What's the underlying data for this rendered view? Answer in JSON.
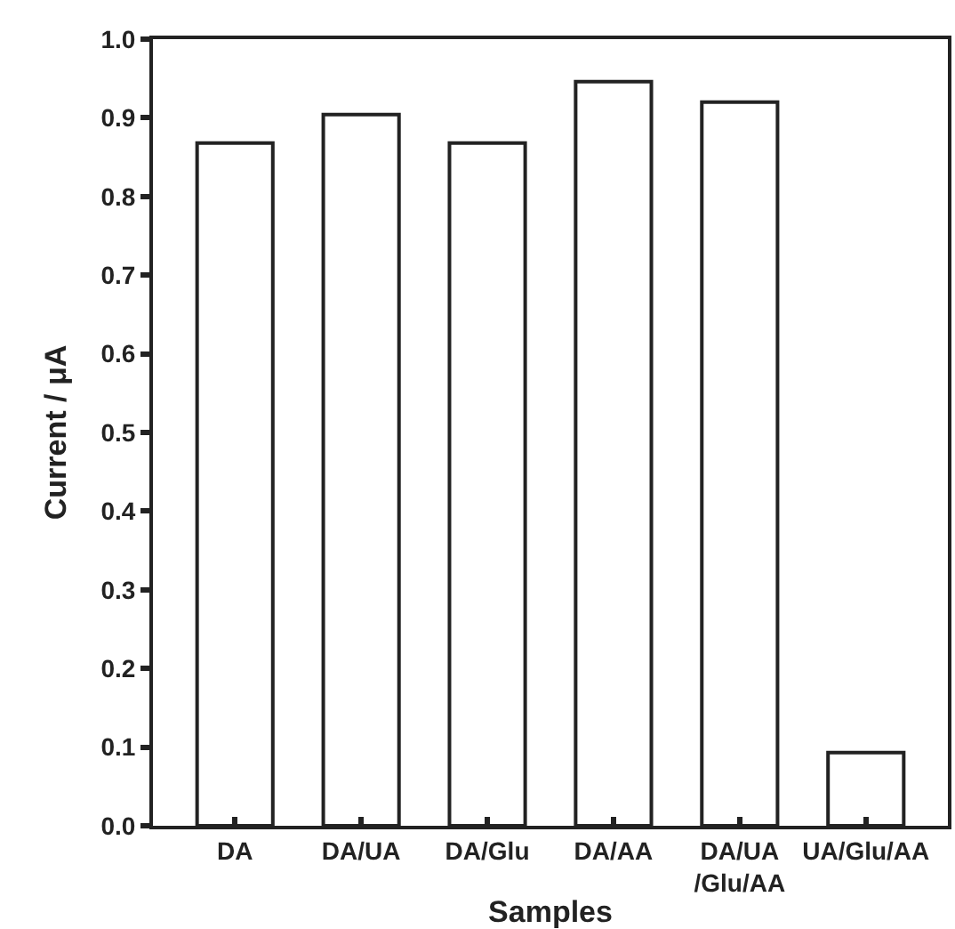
{
  "chart_data": {
    "type": "bar",
    "xlabel": "Samples",
    "ylabel": "Current / μA",
    "categories": [
      "DA",
      "DA/UA",
      "DA/Glu",
      "DA/AA",
      "DA/UA\n/Glu/AA",
      "UA/Glu/AA"
    ],
    "values": [
      0.868,
      0.904,
      0.868,
      0.946,
      0.92,
      0.093
    ],
    "color": "#ffffff",
    "ylim": [
      0,
      1.0
    ],
    "yticks": [
      {
        "value": 0,
        "label": "0.0"
      },
      0.1,
      0.2,
      0.3,
      0.4,
      0.5,
      0.6,
      0.7,
      0.8,
      0.9,
      {
        "value": 1,
        "label": "1.0"
      }
    ]
  }
}
